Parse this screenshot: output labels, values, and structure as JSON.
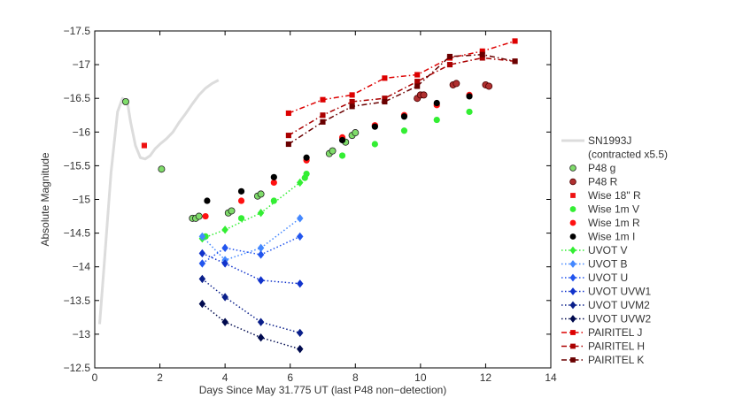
{
  "chart_data": {
    "type": "scatter",
    "title": "",
    "xlabel": "Days Since May 31.775 UT (last P48 non−detection)",
    "ylabel": "Absolute Magnitude",
    "xlim": [
      0,
      14
    ],
    "ylim": [
      -12.5,
      -17.5
    ],
    "y_inverted": true,
    "grid": false,
    "legend_position": "right",
    "x_ticks": [
      0,
      2,
      4,
      6,
      8,
      10,
      12,
      14
    ],
    "x_tick_labels": [
      "0",
      "2",
      "4",
      "6",
      "8",
      "10",
      "12",
      "14"
    ],
    "y_ticks": [
      -12.5,
      -13,
      -13.5,
      -14,
      -14.5,
      -15,
      -15.5,
      -16,
      -16.5,
      -17,
      -17.5
    ],
    "y_tick_labels": [
      "−12.5",
      "−13",
      "−13.5",
      "−14",
      "−14.5",
      "−15",
      "−15.5",
      "−16",
      "−16.5",
      "−17",
      "−17.5"
    ],
    "series": [
      {
        "name": "SN1993J",
        "name2": "(contracted x5.5)",
        "marker": "line",
        "line": "solid",
        "color": "#dcdcdc",
        "x": [
          0.15,
          0.3,
          0.5,
          0.7,
          0.85,
          1.0,
          1.1,
          1.25,
          1.4,
          1.55,
          1.7,
          1.85,
          2.0,
          2.2,
          2.4,
          2.6,
          2.8,
          3.0,
          3.2,
          3.4,
          3.6,
          3.8
        ],
        "y": [
          -13.15,
          -14.1,
          -15.4,
          -16.3,
          -16.5,
          -16.45,
          -16.15,
          -15.8,
          -15.62,
          -15.6,
          -15.65,
          -15.75,
          -15.82,
          -15.9,
          -16.0,
          -16.15,
          -16.28,
          -16.42,
          -16.55,
          -16.65,
          -16.72,
          -16.77
        ]
      },
      {
        "name": "P48 g",
        "marker": "circle",
        "line": "none",
        "color": "#7fdc6a",
        "stroke": "#222222",
        "x": [
          0.95,
          2.05,
          3.0,
          3.1,
          3.2,
          4.1,
          4.2,
          5.0,
          5.1,
          7.2,
          7.3,
          7.7,
          7.9,
          8.0
        ],
        "y": [
          -16.45,
          -15.45,
          -14.72,
          -14.72,
          -14.75,
          -14.8,
          -14.83,
          -15.05,
          -15.08,
          -15.68,
          -15.72,
          -15.85,
          -15.95,
          -15.99
        ]
      },
      {
        "name": "P48 R",
        "marker": "circle",
        "line": "none",
        "color": "#b03030",
        "stroke": "#4a0000",
        "x": [
          9.9,
          10.0,
          10.1,
          11.0,
          11.1,
          12.0,
          12.1
        ],
        "y": [
          -16.5,
          -16.55,
          -16.55,
          -16.7,
          -16.72,
          -16.7,
          -16.68
        ]
      },
      {
        "name": "Wise 18\" R",
        "marker": "square",
        "line": "none",
        "color": "#ee1111",
        "x": [
          1.52
        ],
        "y": [
          -15.8
        ]
      },
      {
        "name": "Wise 1m V",
        "marker": "circle",
        "line": "none",
        "color": "#33ee33",
        "x": [
          3.4,
          4.5,
          5.5,
          6.45,
          6.5,
          7.6,
          8.6,
          9.5,
          10.5,
          11.5
        ],
        "y": [
          -14.45,
          -14.72,
          -14.98,
          -15.32,
          -15.38,
          -15.65,
          -15.82,
          -16.02,
          -16.18,
          -16.3
        ]
      },
      {
        "name": "Wise 1m R",
        "marker": "circle",
        "line": "none",
        "color": "#ff1111",
        "x": [
          3.4,
          4.5,
          5.5,
          6.5,
          7.6,
          8.6,
          9.5,
          10.5,
          11.5
        ],
        "y": [
          -14.75,
          -14.98,
          -15.25,
          -15.58,
          -15.92,
          -16.1,
          -16.25,
          -16.4,
          -16.55
        ]
      },
      {
        "name": "Wise 1m I",
        "marker": "circle",
        "line": "none",
        "color": "#000000",
        "x": [
          3.45,
          4.5,
          5.5,
          6.5,
          7.6,
          8.6,
          9.5,
          10.5,
          11.5
        ],
        "y": [
          -14.98,
          -15.12,
          -15.33,
          -15.62,
          -15.88,
          -16.08,
          -16.23,
          -16.43,
          -16.53
        ]
      },
      {
        "name": "UVOT V",
        "marker": "diamond",
        "line": "dotted",
        "color": "#33ee33",
        "x": [
          3.3,
          4.0,
          5.1,
          6.3
        ],
        "y": [
          -14.42,
          -14.55,
          -14.8,
          -15.25
        ]
      },
      {
        "name": "UVOT B",
        "marker": "diamond",
        "line": "dotted",
        "color": "#4488ff",
        "x": [
          3.3,
          4.0,
          5.1,
          6.3
        ],
        "y": [
          -14.45,
          -14.1,
          -14.28,
          -14.72
        ]
      },
      {
        "name": "UVOT U",
        "marker": "diamond",
        "line": "dotted",
        "color": "#2255ee",
        "x": [
          3.3,
          4.0,
          5.1,
          6.3
        ],
        "y": [
          -14.05,
          -14.28,
          -14.18,
          -14.45
        ]
      },
      {
        "name": "UVOT UVW1",
        "marker": "diamond",
        "line": "dotted",
        "color": "#1133cc",
        "x": [
          3.3,
          4.0,
          5.1,
          6.3
        ],
        "y": [
          -14.2,
          -14.05,
          -13.8,
          -13.75
        ]
      },
      {
        "name": "UVOT UVM2",
        "marker": "diamond",
        "line": "dotted",
        "color": "#0a1f8a",
        "x": [
          3.3,
          4.0,
          5.1,
          6.3
        ],
        "y": [
          -13.82,
          -13.55,
          -13.18,
          -13.02
        ]
      },
      {
        "name": "UVOT UVW2",
        "marker": "diamond",
        "line": "dotted",
        "color": "#000a4e",
        "x": [
          3.3,
          4.0,
          5.1,
          6.3
        ],
        "y": [
          -13.45,
          -13.18,
          -12.95,
          -12.78
        ]
      },
      {
        "name": "PAIRITEL J",
        "marker": "square",
        "line": "dashdot",
        "color": "#dd0000",
        "x": [
          5.95,
          7.0,
          7.9,
          8.9,
          9.9,
          10.9,
          11.9,
          12.9
        ],
        "y": [
          -16.28,
          -16.48,
          -16.55,
          -16.8,
          -16.85,
          -17.1,
          -17.2,
          -17.35
        ]
      },
      {
        "name": "PAIRITEL H",
        "marker": "square",
        "line": "dashdot",
        "color": "#aa0000",
        "x": [
          5.95,
          7.0,
          7.9,
          8.9,
          9.9,
          10.9,
          11.9,
          12.9
        ],
        "y": [
          -15.95,
          -16.25,
          -16.45,
          -16.5,
          -16.75,
          -17.0,
          -17.1,
          -17.05
        ]
      },
      {
        "name": "PAIRITEL K",
        "marker": "square",
        "line": "dashdot",
        "color": "#6a0000",
        "x": [
          5.95,
          7.0,
          7.9,
          8.9,
          9.9,
          10.9,
          11.9,
          12.9
        ],
        "y": [
          -15.82,
          -16.15,
          -16.38,
          -16.45,
          -16.68,
          -17.12,
          -17.15,
          -17.05
        ]
      }
    ]
  }
}
